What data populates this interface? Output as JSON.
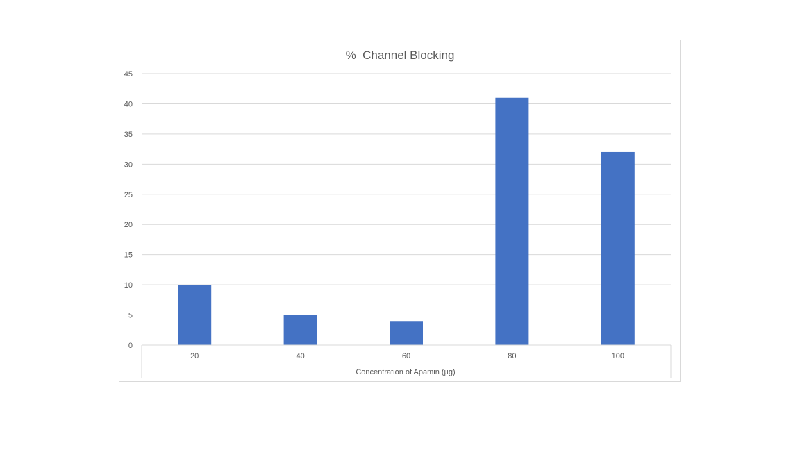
{
  "chart_data": {
    "type": "bar",
    "title": "%  Channel Blocking",
    "xlabel": "Concentration of Apamin (µg)",
    "ylabel": "",
    "categories": [
      "20",
      "40",
      "60",
      "80",
      "100"
    ],
    "values": [
      10,
      5,
      4,
      41,
      32
    ],
    "ylim": [
      0,
      45
    ],
    "yticks": [
      0,
      5,
      10,
      15,
      20,
      25,
      30,
      35,
      40,
      45
    ],
    "grid": true,
    "legend": "none",
    "bar_color": "#4472C4"
  }
}
